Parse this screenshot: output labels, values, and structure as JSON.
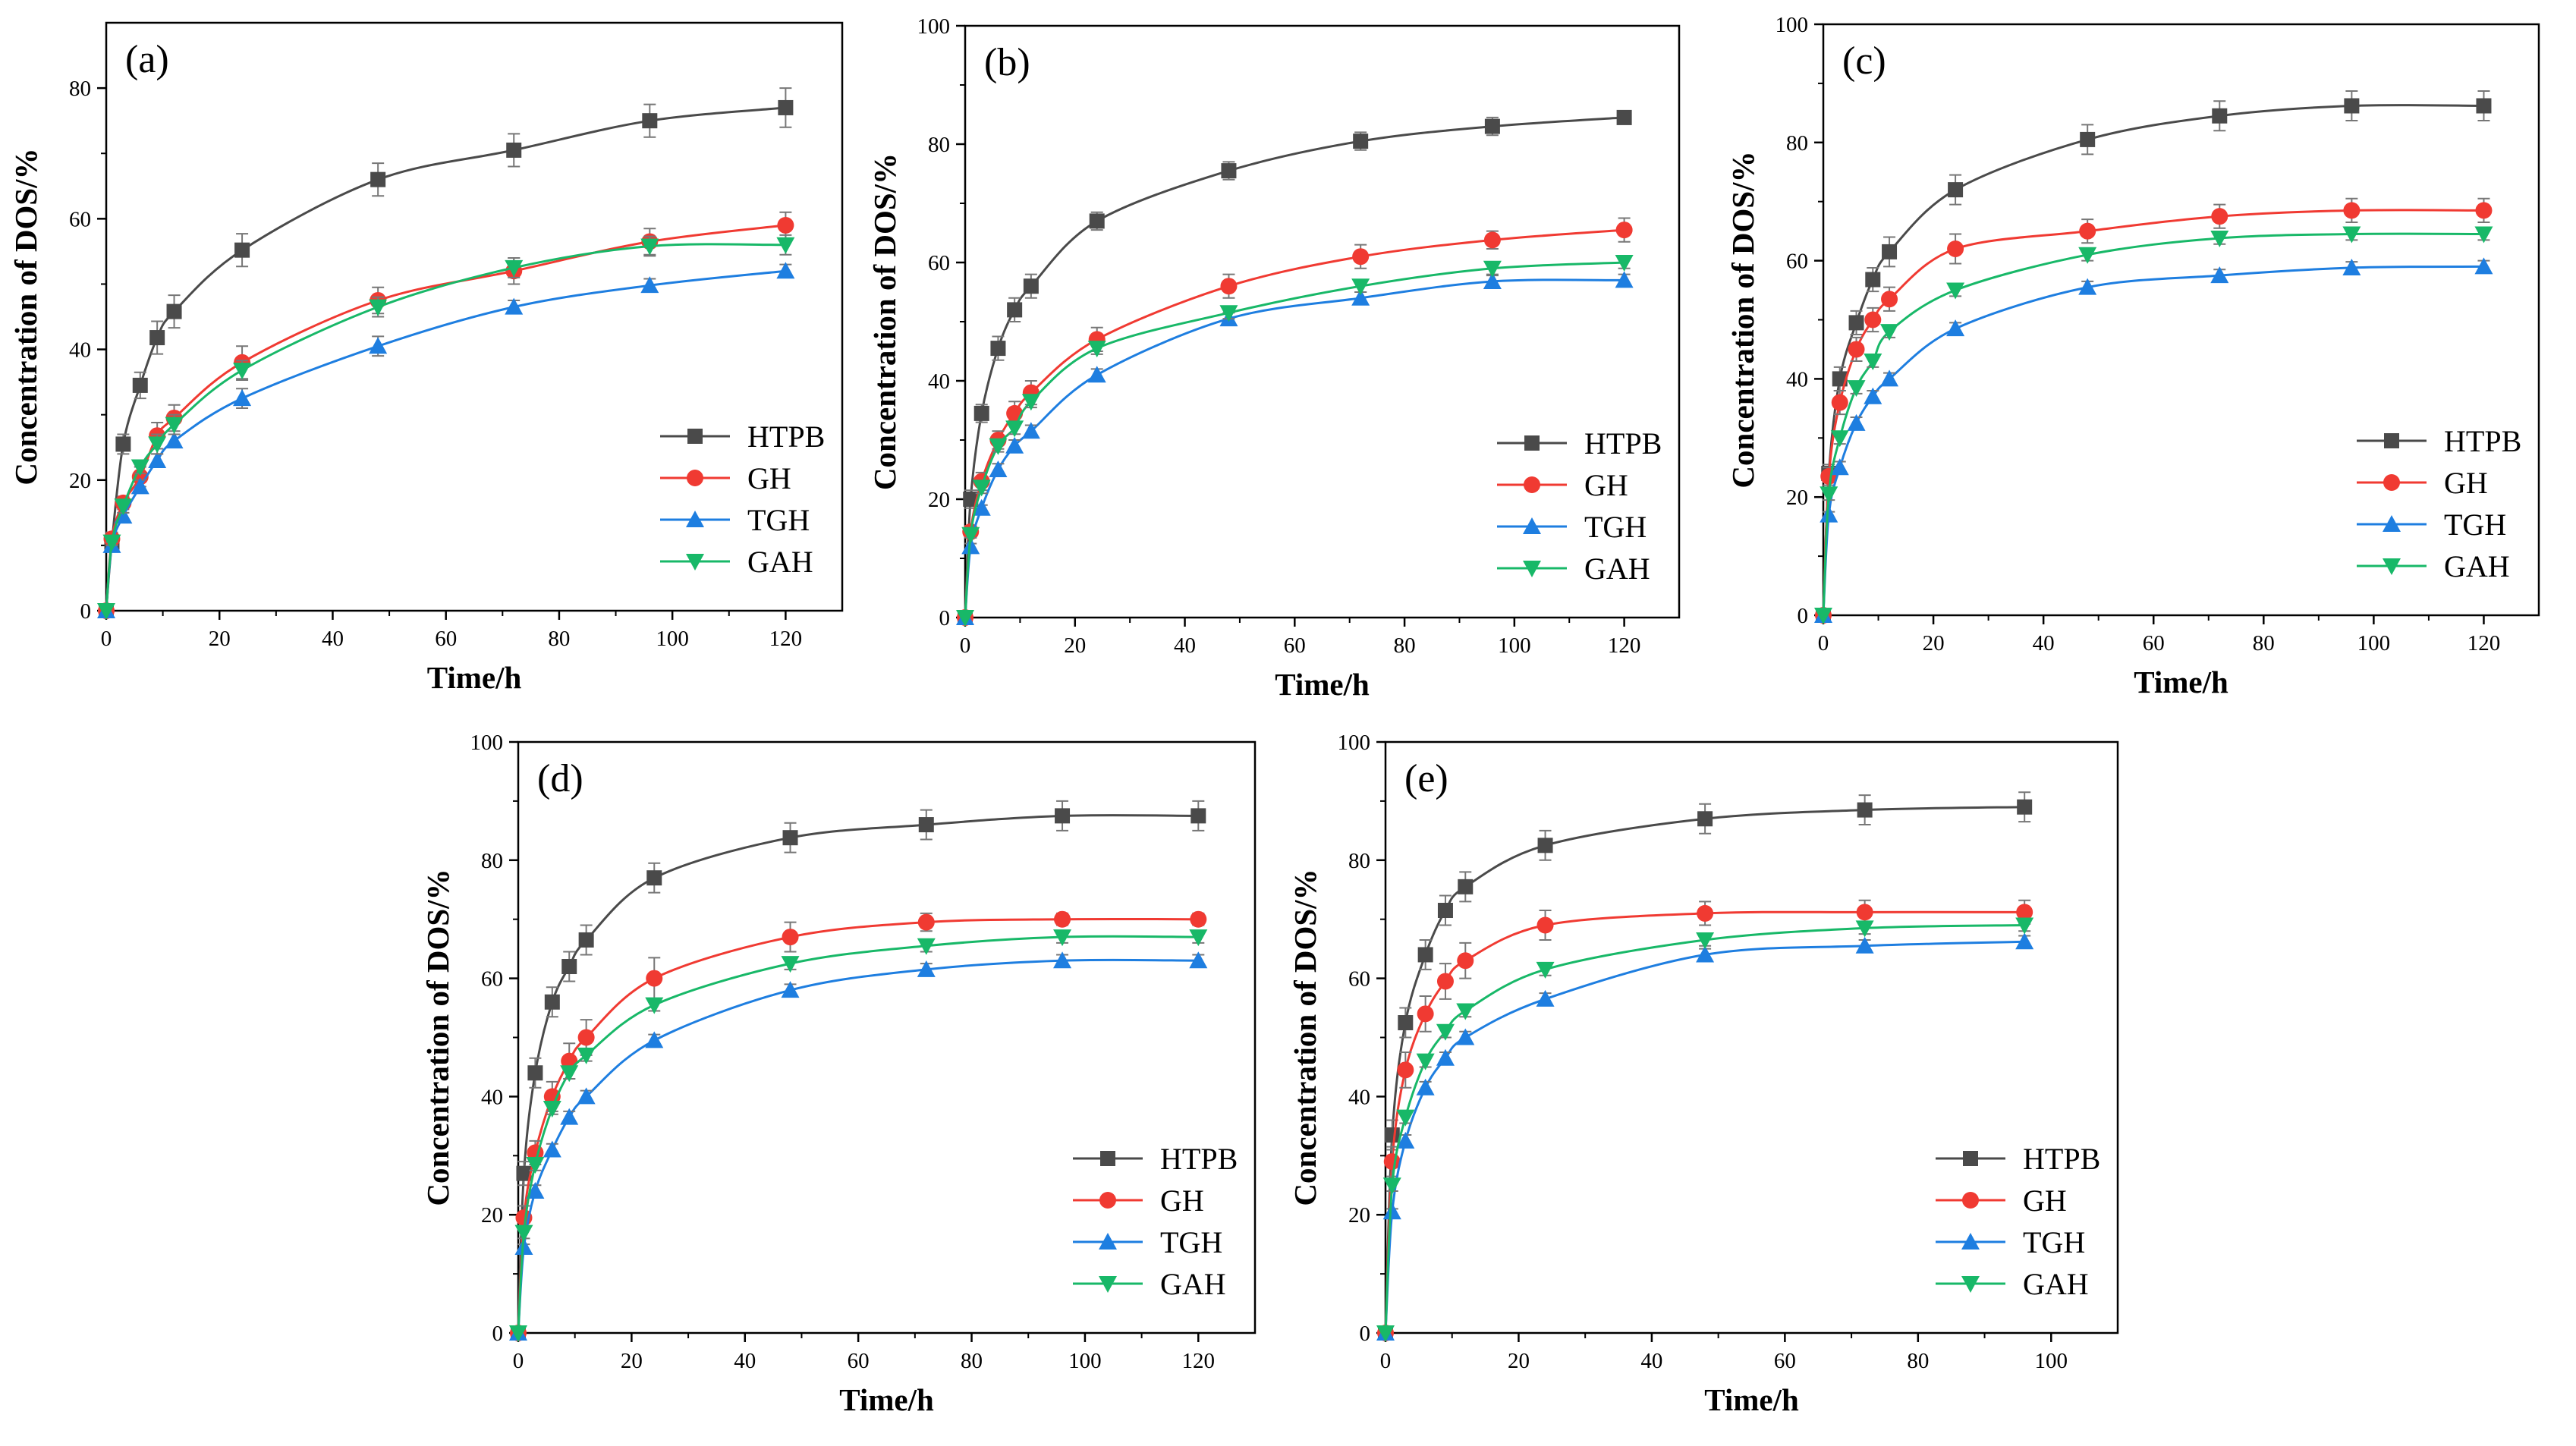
{
  "figure": {
    "series_styles": [
      {
        "name": "HTPB",
        "color": "#4a4a4a",
        "marker": "square"
      },
      {
        "name": "GH",
        "color": "#f03a32",
        "marker": "circle"
      },
      {
        "name": "TGH",
        "color": "#1e7ee0",
        "marker": "triangle-up"
      },
      {
        "name": "GAH",
        "color": "#18b868",
        "marker": "triangle-down"
      }
    ]
  },
  "chart_data": [
    {
      "type": "line",
      "panel_label": "(a)",
      "xlabel": "Time/h",
      "ylabel": "Concentration of DOS/%",
      "xlim": [
        0,
        130
      ],
      "ylim": [
        0,
        90
      ],
      "xticks": [
        0,
        20,
        40,
        60,
        80,
        100,
        120
      ],
      "yticks": [
        0,
        20,
        40,
        60,
        80
      ],
      "legend_position": "lower-right",
      "series": [
        {
          "name": "HTPB",
          "x": [
            0,
            1,
            3,
            6,
            9,
            12,
            24,
            48,
            72,
            96,
            120
          ],
          "y": [
            0,
            10.5,
            25.5,
            34.5,
            41.8,
            45.8,
            55.2,
            66.0,
            70.5,
            75.0,
            77.0
          ],
          "err": [
            0,
            1,
            1.5,
            2,
            2.5,
            2.5,
            2.5,
            2.5,
            2.5,
            2.5,
            3
          ]
        },
        {
          "name": "GH",
          "x": [
            0,
            1,
            3,
            6,
            9,
            12,
            24,
            48,
            72,
            96,
            120
          ],
          "y": [
            0,
            11.0,
            16.5,
            20.5,
            26.8,
            29.5,
            38.0,
            47.5,
            52.0,
            56.5,
            59.0
          ],
          "err": [
            0,
            1,
            1,
            1.5,
            2,
            2,
            2.5,
            2,
            2,
            2,
            2
          ]
        },
        {
          "name": "TGH",
          "x": [
            0,
            1,
            3,
            6,
            9,
            12,
            24,
            48,
            72,
            96,
            120
          ],
          "y": [
            0,
            10.0,
            14.5,
            19.0,
            23.0,
            26.0,
            32.5,
            40.5,
            46.5,
            49.8,
            52.0
          ],
          "err": [
            0,
            0.5,
            0.5,
            1,
            1,
            1,
            1.5,
            1.5,
            1,
            1,
            1
          ]
        },
        {
          "name": "GAH",
          "x": [
            0,
            1,
            3,
            6,
            9,
            12,
            24,
            48,
            72,
            96,
            120
          ],
          "y": [
            0,
            10.5,
            16.0,
            22.0,
            25.5,
            28.5,
            36.8,
            46.5,
            52.5,
            55.8,
            56.0
          ],
          "err": [
            0,
            0.5,
            1,
            1,
            1.5,
            1.5,
            1.5,
            1.5,
            1.5,
            1.5,
            1.5
          ]
        }
      ]
    },
    {
      "type": "line",
      "panel_label": "(b)",
      "xlabel": "Time/h",
      "ylabel": "Concentration of DOS/%",
      "xlim": [
        0,
        130
      ],
      "ylim": [
        0,
        100
      ],
      "xticks": [
        0,
        20,
        40,
        60,
        80,
        100,
        120
      ],
      "yticks": [
        0,
        20,
        40,
        60,
        80,
        100
      ],
      "legend_position": "lower-right",
      "series": [
        {
          "name": "HTPB",
          "x": [
            0,
            1,
            3,
            6,
            9,
            12,
            24,
            48,
            72,
            96,
            120
          ],
          "y": [
            0,
            20.0,
            34.5,
            45.5,
            52.0,
            56.0,
            67.0,
            75.5,
            80.5,
            83.0,
            84.5
          ],
          "err": [
            0,
            1.5,
            1.5,
            2,
            2,
            2,
            1.5,
            1.5,
            1.5,
            1.5,
            1
          ]
        },
        {
          "name": "GH",
          "x": [
            0,
            1,
            3,
            6,
            9,
            12,
            24,
            48,
            72,
            96,
            120
          ],
          "y": [
            0,
            14.5,
            23.0,
            30.0,
            34.5,
            38.0,
            47.0,
            56.0,
            61.0,
            63.8,
            65.5
          ],
          "err": [
            0,
            1,
            1.5,
            1.5,
            2,
            2,
            2,
            2,
            2,
            1.5,
            2
          ]
        },
        {
          "name": "TGH",
          "x": [
            0,
            1,
            3,
            6,
            9,
            12,
            24,
            48,
            72,
            96,
            120
          ],
          "y": [
            0,
            12.0,
            18.5,
            25.0,
            29.0,
            31.5,
            41.0,
            50.5,
            54.0,
            56.8,
            57.0
          ],
          "err": [
            0,
            0.5,
            0.5,
            1,
            1,
            1,
            1,
            1,
            1,
            1,
            1
          ]
        },
        {
          "name": "GAH",
          "x": [
            0,
            1,
            3,
            6,
            9,
            12,
            24,
            48,
            72,
            96,
            120
          ],
          "y": [
            0,
            14.0,
            22.0,
            29.0,
            32.0,
            36.5,
            45.5,
            51.5,
            56.0,
            59.0,
            60.0
          ],
          "err": [
            0,
            0.5,
            1,
            1,
            1,
            1,
            1,
            1,
            1,
            1,
            1
          ]
        }
      ]
    },
    {
      "type": "line",
      "panel_label": "(c)",
      "xlabel": "Time/h",
      "ylabel": "Concentration of DOS/%",
      "xlim": [
        0,
        130
      ],
      "ylim": [
        0,
        100
      ],
      "xticks": [
        0,
        20,
        40,
        60,
        80,
        100,
        120
      ],
      "yticks": [
        0,
        20,
        40,
        60,
        80,
        100
      ],
      "legend_position": "lower-right",
      "series": [
        {
          "name": "HTPB",
          "x": [
            0,
            1,
            3,
            6,
            9,
            12,
            24,
            48,
            72,
            96,
            120
          ],
          "y": [
            0,
            24.0,
            40.0,
            49.5,
            56.8,
            61.5,
            72.0,
            80.5,
            84.5,
            86.2,
            86.2
          ],
          "err": [
            0,
            1.5,
            2,
            2,
            2,
            2.5,
            2.5,
            2.5,
            2.5,
            2.5,
            2.5
          ]
        },
        {
          "name": "GH",
          "x": [
            0,
            1,
            3,
            6,
            9,
            12,
            24,
            48,
            72,
            96,
            120
          ],
          "y": [
            0,
            23.5,
            36.0,
            45.0,
            50.0,
            53.5,
            62.0,
            65.0,
            67.5,
            68.5,
            68.5
          ],
          "err": [
            0,
            1.5,
            2,
            2,
            2,
            2,
            2.5,
            2,
            2,
            2,
            2
          ]
        },
        {
          "name": "TGH",
          "x": [
            0,
            1,
            3,
            6,
            9,
            12,
            24,
            48,
            72,
            96,
            120
          ],
          "y": [
            0,
            17.0,
            25.0,
            32.5,
            37.0,
            40.0,
            48.5,
            55.5,
            57.5,
            58.8,
            59.0
          ],
          "err": [
            0,
            0.5,
            1,
            1,
            1,
            1,
            1,
            1,
            1,
            1,
            1
          ]
        },
        {
          "name": "GAH",
          "x": [
            0,
            1,
            3,
            6,
            9,
            12,
            24,
            48,
            72,
            96,
            120
          ],
          "y": [
            0,
            20.5,
            30.0,
            38.5,
            43.0,
            48.0,
            55.0,
            61.0,
            63.8,
            64.5,
            64.5
          ],
          "err": [
            0,
            1,
            1,
            1,
            1,
            1,
            1,
            1,
            1,
            1,
            1
          ]
        }
      ]
    },
    {
      "type": "line",
      "panel_label": "(d)",
      "xlabel": "Time/h",
      "ylabel": "Concentration of DOS/%",
      "xlim": [
        0,
        130
      ],
      "ylim": [
        0,
        100
      ],
      "xticks": [
        0,
        20,
        40,
        60,
        80,
        100,
        120
      ],
      "yticks": [
        0,
        20,
        40,
        60,
        80,
        100
      ],
      "legend_position": "lower-right",
      "series": [
        {
          "name": "HTPB",
          "x": [
            0,
            1,
            3,
            6,
            9,
            12,
            24,
            48,
            72,
            96,
            120
          ],
          "y": [
            0,
            27.0,
            44.0,
            56.0,
            62.0,
            66.5,
            77.0,
            83.8,
            86.0,
            87.5,
            87.5
          ],
          "err": [
            0,
            2,
            2.5,
            2.5,
            2.5,
            2.5,
            2.5,
            2.5,
            2.5,
            2.5,
            2.5
          ]
        },
        {
          "name": "GH",
          "x": [
            0,
            1,
            3,
            6,
            9,
            12,
            24,
            48,
            72,
            96,
            120
          ],
          "y": [
            0,
            19.5,
            30.5,
            40.0,
            46.0,
            50.0,
            60.0,
            67.0,
            69.5,
            70.0,
            70.0
          ],
          "err": [
            0,
            2,
            2,
            2.5,
            3,
            3,
            3.5,
            2.5,
            1.5,
            1,
            1
          ]
        },
        {
          "name": "TGH",
          "x": [
            0,
            1,
            3,
            6,
            9,
            12,
            24,
            48,
            72,
            96,
            120
          ],
          "y": [
            0,
            14.5,
            24.0,
            31.0,
            36.5,
            40.0,
            49.5,
            58.0,
            61.5,
            63.0,
            63.0
          ],
          "err": [
            0,
            0.5,
            1,
            1,
            1,
            1,
            1,
            1,
            1,
            1,
            1
          ]
        },
        {
          "name": "GAH",
          "x": [
            0,
            1,
            3,
            6,
            9,
            12,
            24,
            48,
            72,
            96,
            120
          ],
          "y": [
            0,
            17.0,
            28.5,
            38.0,
            44.0,
            47.0,
            55.5,
            62.5,
            65.5,
            67.0,
            67.0
          ],
          "err": [
            0,
            1,
            1,
            1,
            1,
            1,
            1,
            1,
            1,
            1,
            1
          ]
        }
      ]
    },
    {
      "type": "line",
      "panel_label": "(e)",
      "xlabel": "Time/h",
      "ylabel": "Concentration of DOS/%",
      "xlim": [
        0,
        110
      ],
      "ylim": [
        0,
        100
      ],
      "xticks": [
        0,
        20,
        40,
        60,
        80,
        100
      ],
      "yticks": [
        0,
        20,
        40,
        60,
        80,
        100
      ],
      "legend_position": "lower-right",
      "series": [
        {
          "name": "HTPB",
          "x": [
            0,
            1,
            3,
            6,
            9,
            12,
            24,
            48,
            72,
            96
          ],
          "y": [
            0,
            33.5,
            52.5,
            64.0,
            71.5,
            75.5,
            82.5,
            87.0,
            88.5,
            89.0
          ],
          "err": [
            0,
            2.5,
            2.5,
            2.5,
            2.5,
            2.5,
            2.5,
            2.5,
            2.5,
            2.5
          ]
        },
        {
          "name": "GH",
          "x": [
            0,
            1,
            3,
            6,
            9,
            12,
            24,
            48,
            72,
            96
          ],
          "y": [
            0,
            29.0,
            44.5,
            54.0,
            59.5,
            63.0,
            69.0,
            71.0,
            71.2,
            71.2
          ],
          "err": [
            0,
            2.5,
            3,
            3,
            3,
            3,
            2.5,
            2,
            2,
            2
          ]
        },
        {
          "name": "TGH",
          "x": [
            0,
            1,
            3,
            6,
            9,
            12,
            24,
            48,
            72,
            96
          ],
          "y": [
            0,
            20.5,
            32.5,
            41.5,
            46.5,
            50.0,
            56.5,
            64.0,
            65.5,
            66.2
          ],
          "err": [
            0,
            0.5,
            1,
            1,
            1,
            1,
            1,
            1,
            1,
            1
          ]
        },
        {
          "name": "GAH",
          "x": [
            0,
            1,
            3,
            6,
            9,
            12,
            24,
            48,
            72,
            96
          ],
          "y": [
            0,
            25.0,
            36.5,
            46.0,
            51.0,
            54.5,
            61.5,
            66.5,
            68.5,
            69.0
          ],
          "err": [
            0,
            1,
            1,
            1,
            1,
            1,
            1,
            1,
            1,
            1
          ]
        }
      ]
    }
  ]
}
